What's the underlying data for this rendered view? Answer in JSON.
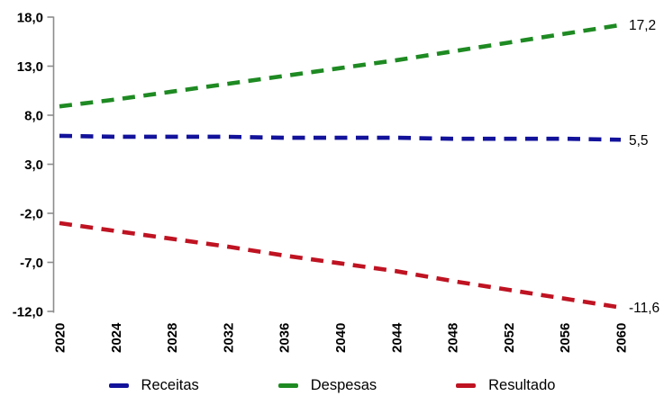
{
  "chart_data": {
    "type": "line",
    "title": "",
    "xlabel": "",
    "ylabel": "",
    "line_style": "dashed",
    "grid": false,
    "legend_position": "bottom",
    "axis_color": "#8c8c8c",
    "text_color": "#000000",
    "ylim": [
      -12,
      18
    ],
    "y_ticks": [
      18,
      13,
      8,
      3,
      -2,
      -7,
      -12
    ],
    "y_tick_labels": [
      "18,0",
      "13,0",
      "8,0",
      "3,0",
      "-2,0",
      "-7,0",
      "-12,0"
    ],
    "x": [
      2020,
      2024,
      2028,
      2032,
      2036,
      2040,
      2044,
      2048,
      2052,
      2056,
      2060
    ],
    "x_tick_labels": [
      "2020",
      "2024",
      "2028",
      "2032",
      "2036",
      "2040",
      "2044",
      "2048",
      "2052",
      "2056",
      "2060"
    ],
    "series": [
      {
        "name": "Receitas",
        "color": "#12129b",
        "values": [
          5.9,
          5.8,
          5.8,
          5.8,
          5.7,
          5.7,
          5.7,
          5.6,
          5.6,
          5.6,
          5.5
        ],
        "end_label": "5,5"
      },
      {
        "name": "Despesas",
        "color": "#1e8a22",
        "values": [
          8.9,
          9.6,
          10.4,
          11.2,
          12.0,
          12.8,
          13.6,
          14.5,
          15.4,
          16.3,
          17.2
        ],
        "end_label": "17,2"
      },
      {
        "name": "Resultado",
        "color": "#bf1322",
        "values": [
          -3.0,
          -3.8,
          -4.6,
          -5.4,
          -6.3,
          -7.1,
          -7.9,
          -8.9,
          -9.8,
          -10.7,
          -11.6
        ],
        "end_label": "-11,6"
      }
    ]
  }
}
